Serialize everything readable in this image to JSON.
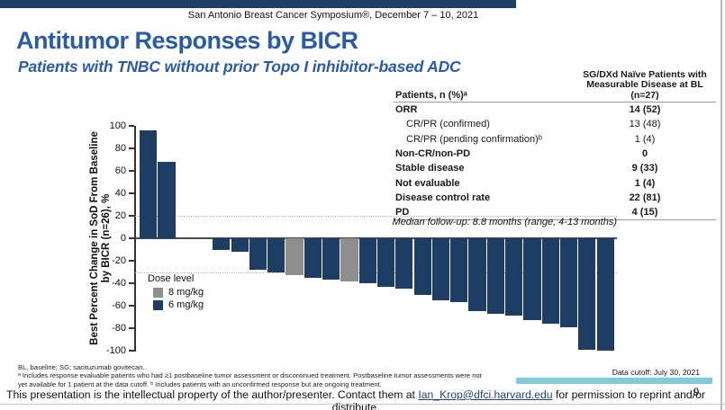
{
  "colors": {
    "navy": "#1d3d62",
    "gray": "#8e8e8e",
    "accent_blue": "#2c5ba6",
    "teal": "#7fccd8"
  },
  "header": {
    "conference": "San Antonio Breast Cancer Symposium®, December 7 – 10, 2021"
  },
  "title": "Antitumor Responses by BICR",
  "subtitle": "Patients with TNBC without prior Topo I inhibitor-based ADC",
  "table": {
    "col1_header": "Patients, n (%)ᵃ",
    "col2_header_lines": [
      "SG/DXd Naïve Patients with",
      "Measurable Disease at BL",
      "(n=27)"
    ],
    "rows": [
      {
        "label": "ORR",
        "value": "14 (52)",
        "bold": true,
        "indent": false
      },
      {
        "label": "CR/PR (confirmed)",
        "value": "13 (48)",
        "bold": false,
        "indent": true
      },
      {
        "label": "CR/PR (pending confirmation)ᵇ",
        "value": "1 (4)",
        "bold": false,
        "indent": true
      },
      {
        "label": "Non-CR/non-PD",
        "value": "0",
        "bold": true,
        "indent": false
      },
      {
        "label": "Stable disease",
        "value": "9 (33)",
        "bold": true,
        "indent": false
      },
      {
        "label": "Not evaluable",
        "value": "1 (4)",
        "bold": true,
        "indent": false
      },
      {
        "label": "Disease control rate",
        "value": "22 (81)",
        "bold": true,
        "indent": false
      },
      {
        "label": "PD",
        "value": "4 (15)",
        "bold": true,
        "indent": false
      }
    ]
  },
  "chart_data": {
    "type": "bar",
    "subtype": "waterfall",
    "title": "",
    "ylabel_lines": [
      "Best Percent Change in SoD From Baseline",
      "by BICR (n=26), %"
    ],
    "ylim": [
      -100,
      100
    ],
    "yticks": [
      100,
      80,
      60,
      40,
      20,
      0,
      -20,
      -40,
      -60,
      -80,
      -100
    ],
    "reference_lines": [
      20,
      -30
    ],
    "grid": "reference-lines-only",
    "annotation": "Median follow-up: 8.8 months (range, 4-13 months)",
    "legend": {
      "title": "Dose level",
      "position": "inside-lower-left",
      "items": [
        {
          "label": "8 mg/kg",
          "color": "#8e8e8e"
        },
        {
          "label": "6 mg/kg",
          "color": "#1d3d62"
        }
      ]
    },
    "series": [
      {
        "name": "Best percent change in SoD from baseline by BICR (n=26)",
        "points": [
          {
            "value": 96,
            "dose": "6 mg/kg"
          },
          {
            "value": 68,
            "dose": "6 mg/kg"
          },
          {
            "value": 0,
            "dose": null
          },
          {
            "value": 0,
            "dose": null
          },
          {
            "value": -10,
            "dose": "6 mg/kg"
          },
          {
            "value": -12,
            "dose": "6 mg/kg"
          },
          {
            "value": -28,
            "dose": "6 mg/kg"
          },
          {
            "value": -30,
            "dose": "6 mg/kg"
          },
          {
            "value": -33,
            "dose": "8 mg/kg"
          },
          {
            "value": -35,
            "dose": "6 mg/kg"
          },
          {
            "value": -37,
            "dose": "6 mg/kg"
          },
          {
            "value": -38,
            "dose": "8 mg/kg"
          },
          {
            "value": -40,
            "dose": "6 mg/kg"
          },
          {
            "value": -43,
            "dose": "6 mg/kg"
          },
          {
            "value": -45,
            "dose": "6 mg/kg"
          },
          {
            "value": -50,
            "dose": "6 mg/kg"
          },
          {
            "value": -55,
            "dose": "6 mg/kg"
          },
          {
            "value": -57,
            "dose": "6 mg/kg"
          },
          {
            "value": -65,
            "dose": "6 mg/kg"
          },
          {
            "value": -67,
            "dose": "6 mg/kg"
          },
          {
            "value": -69,
            "dose": "6 mg/kg"
          },
          {
            "value": -73,
            "dose": "6 mg/kg"
          },
          {
            "value": -76,
            "dose": "6 mg/kg"
          },
          {
            "value": -79,
            "dose": "6 mg/kg"
          },
          {
            "value": -99,
            "dose": "6 mg/kg"
          },
          {
            "value": -100,
            "dose": "6 mg/kg"
          }
        ]
      }
    ]
  },
  "footnotes": {
    "lines": [
      "BL, baseline; SG; sacituzumab govitecan..",
      "ᵃ Includes response evaluable patients who had ≥1 postbaseline tumor assessment or discontinued treatment. Postbaseline tumor assessments were not",
      "yet available for 1 patient at the data cutoff. ᵇ Includes patients with an unconfirmed response but are ongoing treatment."
    ]
  },
  "data_cutoff": "Data cutoff: July 30, 2021",
  "footer": {
    "text_before": "This presentation is the intellectual property of the author/presenter. Contact them at ",
    "link": "Ian_Krop@dfci.harvard.edu",
    "text_after": " for permission to reprint and/or distribute.",
    "page_number": "9"
  }
}
